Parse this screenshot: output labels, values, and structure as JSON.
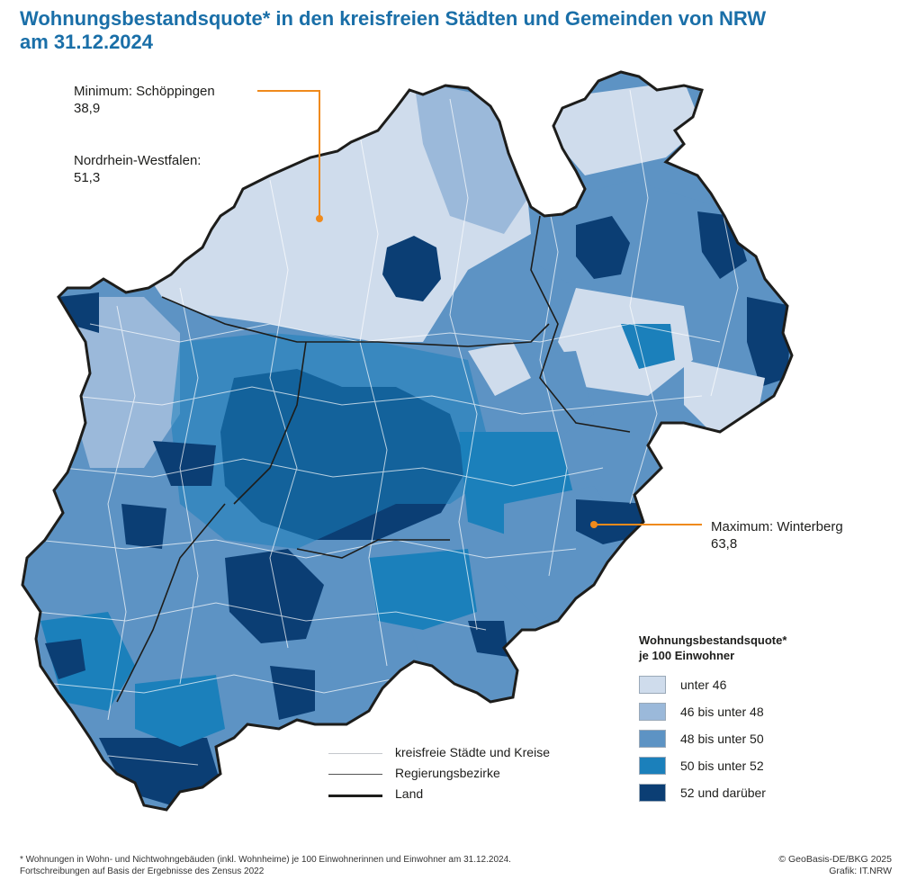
{
  "title_line1": "Wohnungsbestandsquote* in den kreisfreien Städten und Gemeinden von NRW",
  "title_line2": "am 31.12.2024",
  "annotations": {
    "minimum_label": "Minimum: Schöppingen",
    "minimum_value": "38,9",
    "nrw_label": "Nordrhein-Westfalen:",
    "nrw_value": "51,3",
    "maximum_label": "Maximum: Winterberg",
    "maximum_value": "63,8"
  },
  "legend": {
    "title_line1": "Wohnungsbestandsquote*",
    "title_line2": "je 100 Einwohner",
    "classes": [
      {
        "label": "unter 46",
        "color": "#cfdcec"
      },
      {
        "label": "46 bis unter 48",
        "color": "#9bb9da"
      },
      {
        "label": "48 bis unter 50",
        "color": "#5d93c4"
      },
      {
        "label": "50 bis unter 52",
        "color": "#1b80bb"
      },
      {
        "label": "52 und darüber",
        "color": "#0b3e74"
      }
    ]
  },
  "boundary_legend": [
    {
      "label": "kreisfreie Städte und Kreise",
      "color": "#c4c8cc",
      "width": 1
    },
    {
      "label": "Regierungsbezirke",
      "color": "#555555",
      "width": 1.5
    },
    {
      "label": "Land",
      "color": "#1d1d1b",
      "width": 3
    }
  ],
  "accent_color": "#ef8a1c",
  "footnote_line1": "* Wohnungen in Wohn- und Nichtwohngebäuden (inkl. Wohnheime) je 100 Einwohnerinnen und Einwohner am 31.12.2024.",
  "footnote_line2": "Fortschreibungen auf Basis der Ergebnisse des Zensus 2022",
  "credit_line1": "© GeoBasis-DE/BKG 2025",
  "credit_line2": "Grafik: IT.NRW"
}
